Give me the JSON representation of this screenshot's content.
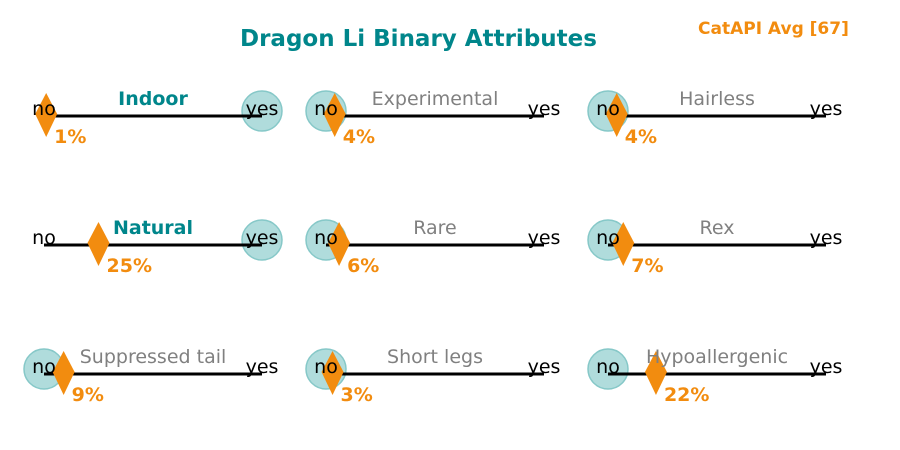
{
  "title": "Dragon Li Binary Attributes",
  "average_badge": "CatAPI Avg [67]",
  "colors": {
    "title": "#00868b",
    "accent": "#f28c0f",
    "active_label": "#00868b",
    "inactive_label": "#808080",
    "marker_circle": "#b0dcdc",
    "marker_circle_edge": "#86c8c8",
    "axis": "#000000"
  },
  "chart_data": {
    "type": "scatter",
    "title": "Dragon Li Binary Attributes",
    "xlim": [
      0,
      100
    ],
    "scale_labels": {
      "min": "no",
      "max": "yes"
    },
    "grid": false,
    "panels": [
      {
        "attribute": "Indoor",
        "value": "yes",
        "percent": 1,
        "percent_label": "1%",
        "highlighted": true
      },
      {
        "attribute": "Experimental",
        "value": "no",
        "percent": 4,
        "percent_label": "4%",
        "highlighted": false
      },
      {
        "attribute": "Hairless",
        "value": "no",
        "percent": 4,
        "percent_label": "4%",
        "highlighted": false
      },
      {
        "attribute": "Natural",
        "value": "yes",
        "percent": 25,
        "percent_label": "25%",
        "highlighted": true
      },
      {
        "attribute": "Rare",
        "value": "no",
        "percent": 6,
        "percent_label": "6%",
        "highlighted": false
      },
      {
        "attribute": "Rex",
        "value": "no",
        "percent": 7,
        "percent_label": "7%",
        "highlighted": false
      },
      {
        "attribute": "Suppressed tail",
        "value": "no",
        "percent": 9,
        "percent_label": "9%",
        "highlighted": false
      },
      {
        "attribute": "Short legs",
        "value": "no",
        "percent": 3,
        "percent_label": "3%",
        "highlighted": false
      },
      {
        "attribute": "Hypoallergenic",
        "value": "no",
        "percent": 22,
        "percent_label": "22%",
        "highlighted": false
      }
    ]
  }
}
